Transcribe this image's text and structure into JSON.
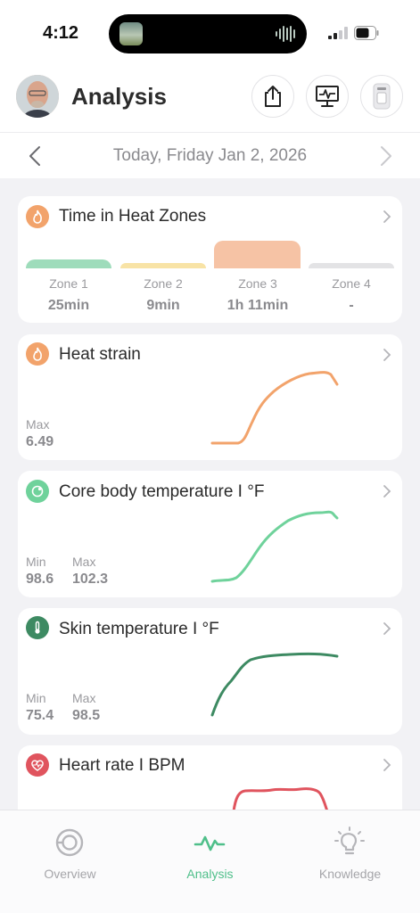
{
  "status_bar": {
    "time": "4:12"
  },
  "header": {
    "title": "Analysis"
  },
  "date_nav": {
    "label": "Today, Friday Jan 2, 2026"
  },
  "colors": {
    "zone1": "#9edcbb",
    "zone2": "#f8e3a6",
    "zone3": "#f6c3a5",
    "zone4": "#e3e3e5",
    "heat_strain": "#f2a36b",
    "core_temp": "#6fd29b",
    "skin_temp": "#3d8a62",
    "heart_rate": "#e0545e",
    "accent": "#4fbf8a"
  },
  "heat_zones": {
    "title": "Time in Heat Zones",
    "zones": [
      {
        "label": "Zone 1",
        "value": "25min"
      },
      {
        "label": "Zone 2",
        "value": "9min"
      },
      {
        "label": "Zone 3",
        "value": "1h 11min"
      },
      {
        "label": "Zone 4",
        "value": "-"
      }
    ]
  },
  "heat_strain": {
    "title": "Heat strain",
    "max_label": "Max",
    "max_value": "6.49"
  },
  "core_temp": {
    "title": "Core body temperature I °F",
    "min_label": "Min",
    "min_value": "98.6",
    "max_label": "Max",
    "max_value": "102.3"
  },
  "skin_temp": {
    "title": "Skin temperature I °F",
    "min_label": "Min",
    "min_value": "75.4",
    "max_label": "Max",
    "max_value": "98.5"
  },
  "heart_rate": {
    "title": "Heart rate I BPM"
  },
  "tabs": [
    {
      "label": "Overview",
      "icon": "overview-icon"
    },
    {
      "label": "Analysis",
      "icon": "pulse-icon"
    },
    {
      "label": "Knowledge",
      "icon": "lightbulb-icon"
    }
  ]
}
